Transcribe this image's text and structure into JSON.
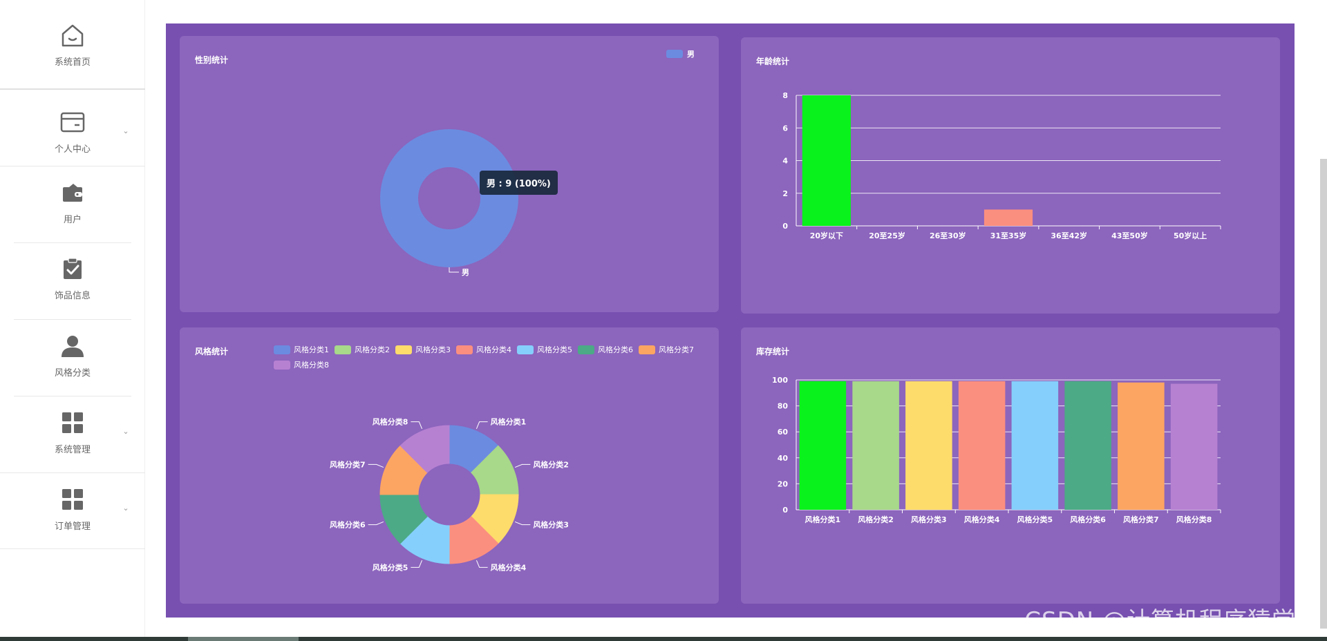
{
  "sidebar": {
    "items": [
      {
        "label": "系统首页",
        "icon": "home-icon",
        "has_children": false
      },
      {
        "label": "个人中心",
        "icon": "card-icon",
        "has_children": true
      },
      {
        "label": "用户",
        "icon": "wallet-icon",
        "has_children": false
      },
      {
        "label": "饰品信息",
        "icon": "clipboard-check-icon",
        "has_children": false
      },
      {
        "label": "风格分类",
        "icon": "person-icon",
        "has_children": false
      },
      {
        "label": "系统管理",
        "icon": "grid-icon",
        "has_children": true
      },
      {
        "label": "订单管理",
        "icon": "grid-icon",
        "has_children": true
      }
    ]
  },
  "colors": {
    "main_bg": "#7750b0",
    "panel_bg": "#8c65bd",
    "palette": [
      "#6b8be0",
      "#a8d88a",
      "#fddc6b",
      "#fb8f7f",
      "#85cffc",
      "#4caa86",
      "#fca562",
      "#b781d2"
    ],
    "age_first_bar": "#0af21b"
  },
  "panels": {
    "gender": {
      "title": "性别统计"
    },
    "age": {
      "title": "年龄统计"
    },
    "style": {
      "title": "风格统计"
    },
    "stock": {
      "title": "库存统计"
    }
  },
  "tooltip": {
    "text": "男 : 9 (100%)"
  },
  "watermark": "CSDN @计算机程序猿学长",
  "chart_data": [
    {
      "id": "gender",
      "type": "pie",
      "donut": true,
      "title": "性别统计",
      "legend": [
        "男"
      ],
      "legend_position": "top-right",
      "categories": [
        "男"
      ],
      "values": [
        9
      ],
      "labels": [
        "男"
      ]
    },
    {
      "id": "age",
      "type": "bar",
      "title": "年龄统计",
      "categories": [
        "20岁以下",
        "20至25岁",
        "26至30岁",
        "31至35岁",
        "36至42岁",
        "43至50岁",
        "50岁以上"
      ],
      "values": [
        8,
        0,
        0,
        1,
        0,
        0,
        0
      ],
      "ylim": [
        0,
        8
      ],
      "yticks": [
        0,
        2,
        4,
        6,
        8
      ],
      "grid": true
    },
    {
      "id": "style",
      "type": "pie",
      "donut": true,
      "title": "风格统计",
      "legend": [
        "风格分类1",
        "风格分类2",
        "风格分类3",
        "风格分类4",
        "风格分类5",
        "风格分类6",
        "风格分类7",
        "风格分类8"
      ],
      "legend_position": "top",
      "categories": [
        "风格分类1",
        "风格分类2",
        "风格分类3",
        "风格分类4",
        "风格分类5",
        "风格分类6",
        "风格分类7",
        "风格分类8"
      ],
      "values": [
        1,
        1,
        1,
        1,
        1,
        1,
        1,
        1
      ]
    },
    {
      "id": "stock",
      "type": "bar",
      "title": "库存统计",
      "categories": [
        "风格分类1",
        "风格分类2",
        "风格分类3",
        "风格分类4",
        "风格分类5",
        "风格分类6",
        "风格分类7",
        "风格分类8"
      ],
      "values": [
        99,
        99,
        99,
        99,
        99,
        99,
        98,
        97
      ],
      "ylim": [
        0,
        100
      ],
      "yticks": [
        0,
        20,
        40,
        60,
        80,
        100
      ],
      "grid": true
    }
  ]
}
